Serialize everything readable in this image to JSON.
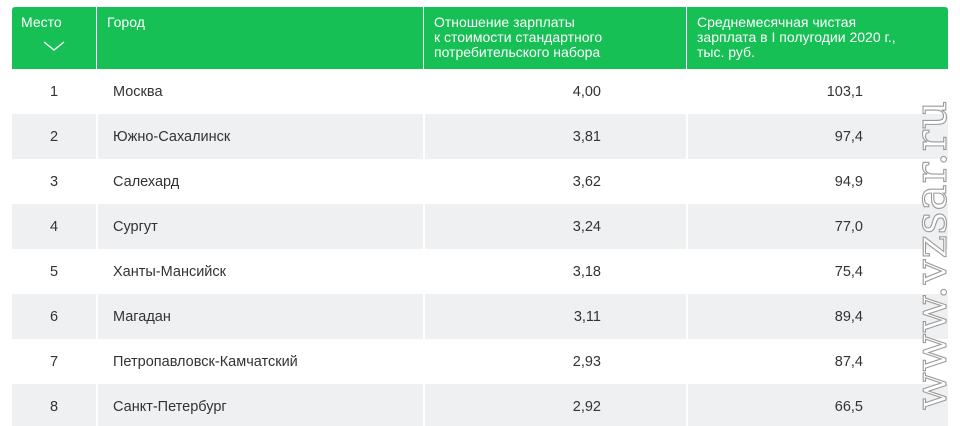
{
  "table": {
    "columns": [
      "Место",
      "Город",
      "Отношение зарплаты к стоимости стандартного потребительского набора",
      "Среднемесячная чистая зарплата в I полугодии 2020 г., тыс. руб."
    ],
    "column_lines": [
      [
        "Место"
      ],
      [
        "Город"
      ],
      [
        "Отношение зарплаты",
        "к стоимости стандартного",
        "потребительского набора"
      ],
      [
        "Среднемесячная чистая",
        "зарплата в I полугодии 2020 г.,",
        "тыс. руб."
      ]
    ],
    "sort_icon": "chevron-down-icon",
    "rows": [
      {
        "rank": "1",
        "city": "Москва",
        "ratio": "4,00",
        "salary": "103,1"
      },
      {
        "rank": "2",
        "city": "Южно-Сахалинск",
        "ratio": "3,81",
        "salary": "97,4"
      },
      {
        "rank": "3",
        "city": "Салехард",
        "ratio": "3,62",
        "salary": "94,9"
      },
      {
        "rank": "4",
        "city": "Сургут",
        "ratio": "3,24",
        "salary": "77,0"
      },
      {
        "rank": "5",
        "city": "Ханты-Мансийск",
        "ratio": "3,18",
        "salary": "75,4"
      },
      {
        "rank": "6",
        "city": "Магадан",
        "ratio": "3,11",
        "salary": "89,4"
      },
      {
        "rank": "7",
        "city": "Петропавловск-Камчатский",
        "ratio": "2,93",
        "salary": "87,4"
      },
      {
        "rank": "8",
        "city": "Санкт-Петербург",
        "ratio": "2,92",
        "salary": "66,5"
      }
    ]
  },
  "watermark": "www.vzsar.ru",
  "colors": {
    "header_bg": "#17c054",
    "header_text": "#ffffff",
    "row_alt_bg": "#eef0f1",
    "text": "#333333"
  }
}
